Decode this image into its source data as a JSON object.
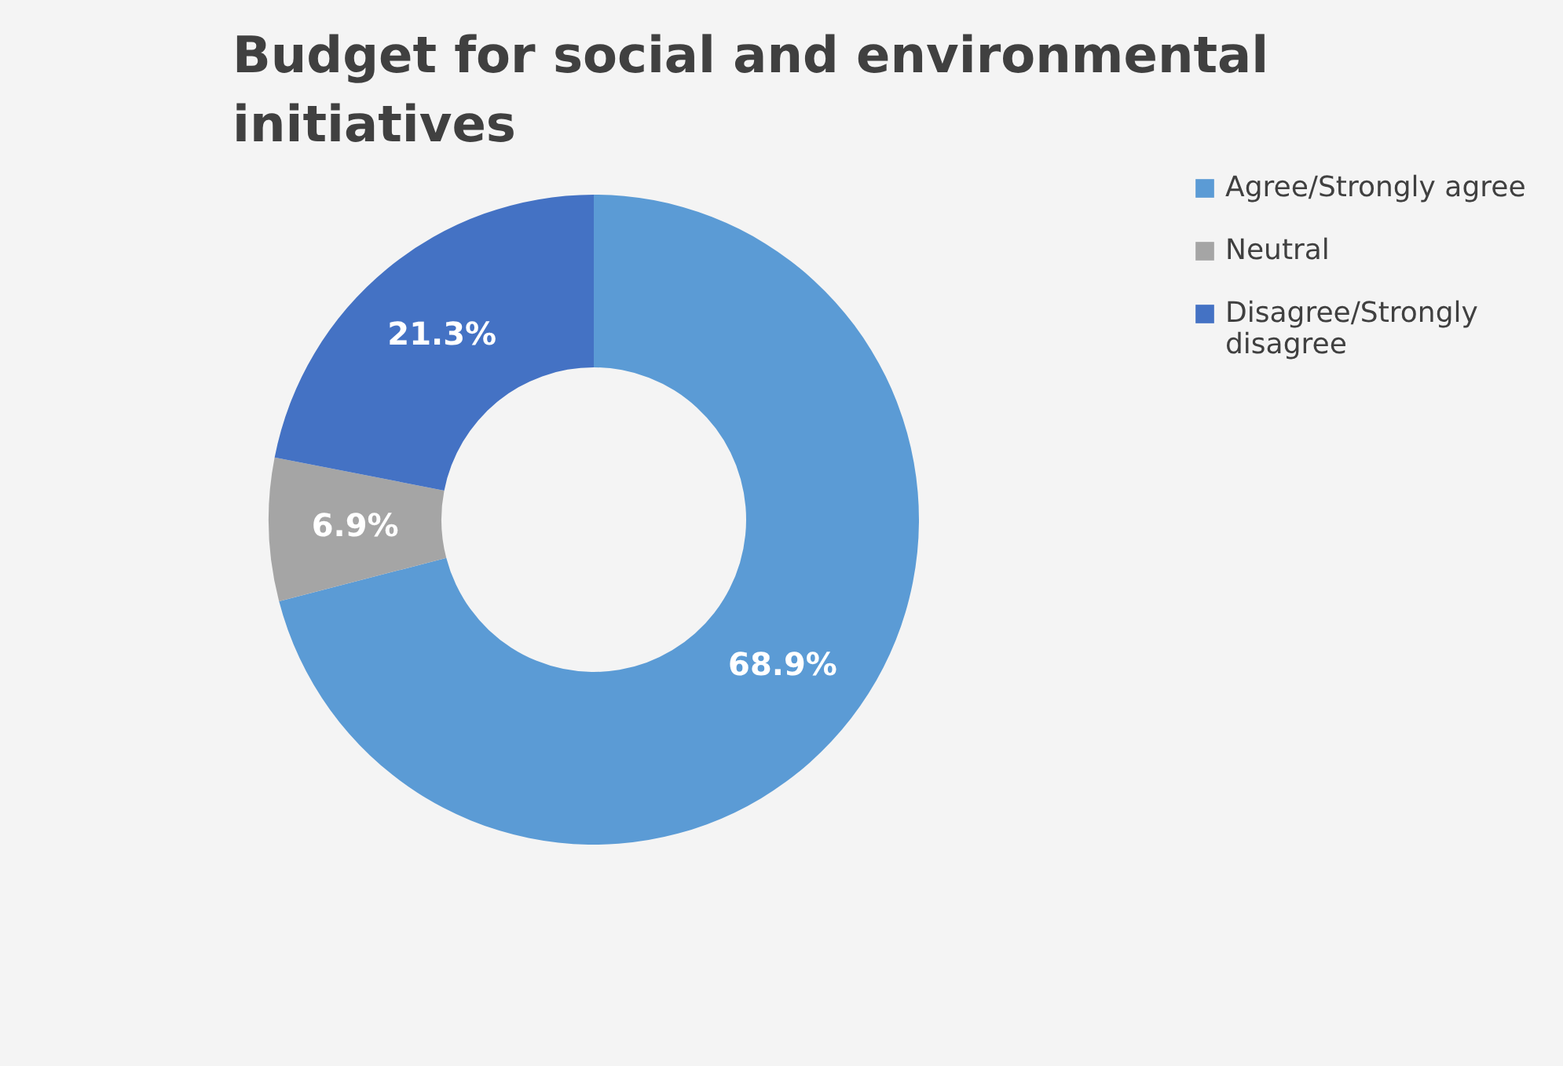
{
  "chart_data": {
    "type": "donut",
    "title": "Budget for social and environmental initiatives",
    "categories": [
      "Agree/Strongly agree",
      "Neutral",
      "Disagree/Strongly disagree"
    ],
    "values": [
      68.9,
      6.9,
      21.3
    ],
    "colors": [
      "#5b9bd5",
      "#a5a5a5",
      "#4472c4"
    ],
    "value_labels": [
      "68.9%",
      "6.9%",
      "21.3%"
    ],
    "legend": "right"
  }
}
